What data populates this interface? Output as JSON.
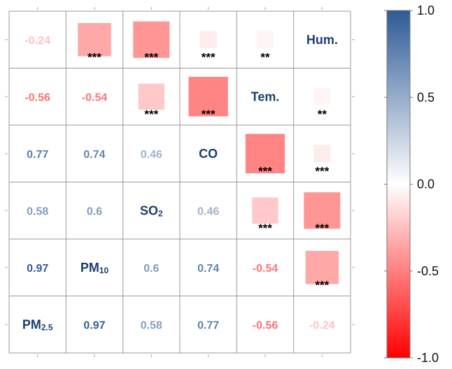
{
  "chart_data": {
    "type": "heatmap",
    "variables": [
      "PM2.5",
      "PM10",
      "SO2",
      "CO",
      "Tem.",
      "Hum."
    ],
    "variable_labels": [
      {
        "main": "PM",
        "sub": "2.5"
      },
      {
        "main": "PM",
        "sub": "10"
      },
      {
        "main": "SO",
        "sub": "2"
      },
      {
        "main": "CO",
        "sub": ""
      },
      {
        "main": "Tem.",
        "sub": ""
      },
      {
        "main": "Hum.",
        "sub": ""
      }
    ],
    "correlations": [
      [
        1,
        0.97,
        0.58,
        0.77,
        -0.56,
        -0.24
      ],
      [
        0.97,
        1,
        0.6,
        0.74,
        -0.54,
        -0.34
      ],
      [
        0.58,
        0.6,
        1,
        0.46,
        -0.21,
        -0.41
      ],
      [
        0.77,
        0.74,
        0.46,
        1,
        -0.48,
        -0.07
      ],
      [
        -0.56,
        -0.54,
        -0.21,
        -0.48,
        1,
        -0.04
      ],
      [
        -0.24,
        -0.34,
        -0.41,
        -0.07,
        -0.04,
        1
      ]
    ],
    "value_labels": [
      [
        "",
        "0.97",
        "0.58",
        "0.77",
        "-0.56",
        "-0.24"
      ],
      [
        "0.97",
        "",
        "0.6",
        "0.74",
        "-0.54",
        "-0.34"
      ],
      [
        "0.58",
        "0.6",
        "",
        "0.46",
        "-0.21",
        "-0.41"
      ],
      [
        "0.77",
        "0.74",
        "0.46",
        "",
        "-0.48",
        "-0.07"
      ],
      [
        "-0.56",
        "-0.54",
        "-0.21",
        "-0.48",
        "",
        "-0.04"
      ],
      [
        "-0.24",
        "-0.34",
        "-0.41",
        "-0.07",
        "-0.04",
        ""
      ]
    ],
    "significance": [
      [
        "",
        "***",
        "***",
        "***",
        "***",
        "***"
      ],
      [
        "***",
        "",
        "***",
        "***",
        "***",
        "***"
      ],
      [
        "***",
        "***",
        "",
        "***",
        "***",
        "***"
      ],
      [
        "***",
        "***",
        "***",
        "",
        "***",
        "***"
      ],
      [
        "***",
        "***",
        "***",
        "***",
        "",
        "**"
      ],
      [
        "***",
        "***",
        "***",
        "***",
        "**",
        ""
      ]
    ],
    "colorbar": {
      "min": -1.0,
      "max": 1.0,
      "ticks": [
        1.0,
        0.5,
        0.0,
        -0.5,
        -1.0
      ],
      "tick_labels": [
        "1.0",
        "0.5",
        "0.0",
        "-0.5",
        "-1.0"
      ]
    },
    "colors": {
      "negative": "#ff0000",
      "neutral": "#ffffff",
      "positive": "#2e5a96",
      "label_text": "#1a3e73",
      "grid": "#999999"
    },
    "layout_note": "lower-right triangle shows colored squares with significance stars; upper-left triangle shows coefficients as text; diagonal shows variable names"
  }
}
